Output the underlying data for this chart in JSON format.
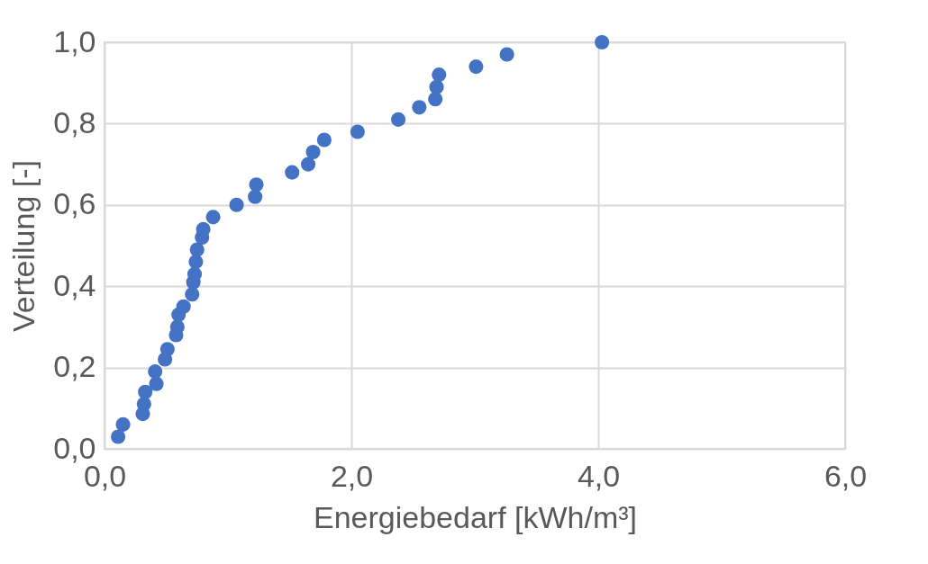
{
  "chart_data": {
    "type": "scatter",
    "xlabel": "Energiebedarf [kWh/m³]",
    "ylabel": "Verteilung [-]",
    "x": [
      0.11,
      0.15,
      0.31,
      0.32,
      0.33,
      0.42,
      0.41,
      0.49,
      0.51,
      0.58,
      0.59,
      0.6,
      0.64,
      0.71,
      0.72,
      0.73,
      0.74,
      0.75,
      0.79,
      0.8,
      0.88,
      1.07,
      1.22,
      1.23,
      1.52,
      1.65,
      1.69,
      1.78,
      2.05,
      2.38,
      2.55,
      2.68,
      2.69,
      2.71,
      3.01,
      3.26,
      4.03
    ],
    "series": [
      {
        "color": "#4472c4",
        "values": [
          0.03,
          0.06,
          0.086,
          0.11,
          0.14,
          0.16,
          0.19,
          0.22,
          0.245,
          0.28,
          0.3,
          0.33,
          0.35,
          0.38,
          0.41,
          0.43,
          0.46,
          0.49,
          0.52,
          0.54,
          0.57,
          0.6,
          0.62,
          0.65,
          0.68,
          0.7,
          0.73,
          0.76,
          0.78,
          0.81,
          0.84,
          0.86,
          0.89,
          0.92,
          0.94,
          0.97,
          1.0
        ]
      }
    ],
    "xlim": [
      0,
      6
    ],
    "xticks": [
      {
        "value": 0,
        "label": "0,0"
      },
      {
        "value": 2,
        "label": "2,0"
      },
      {
        "value": 4,
        "label": "4,0"
      },
      {
        "value": 6,
        "label": "6,0"
      }
    ],
    "ylim": [
      0,
      1
    ],
    "yticks": [
      {
        "value": 0,
        "label": "0,0"
      },
      {
        "value": 0.2,
        "label": "0,2"
      },
      {
        "value": 0.4,
        "label": "0,4"
      },
      {
        "value": 0.6,
        "label": "0,6"
      },
      {
        "value": 0.8,
        "label": "0,8"
      },
      {
        "value": 1,
        "label": "1,0"
      }
    ],
    "grid": true,
    "marker": "circle"
  }
}
